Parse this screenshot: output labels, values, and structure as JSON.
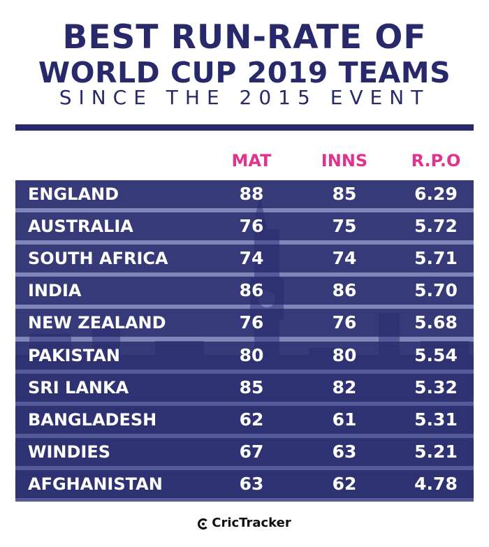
{
  "title": {
    "line1": "BEST RUN-RATE OF",
    "line2": "WORLD CUP 2019 TEAMS",
    "subtitle": "SINCE THE 2015 EVENT"
  },
  "colors": {
    "navy": "#27296a",
    "pink": "#e0338c",
    "row_text": "#ffffff"
  },
  "chart_data": {
    "type": "table",
    "columns": [
      "MAT",
      "INNS",
      "R.P.O"
    ],
    "rows": [
      {
        "team": "ENGLAND",
        "mat": "88",
        "inns": "85",
        "rpo": "6.29"
      },
      {
        "team": "AUSTRALIA",
        "mat": "76",
        "inns": "75",
        "rpo": "5.72"
      },
      {
        "team": "SOUTH AFRICA",
        "mat": "74",
        "inns": "74",
        "rpo": "5.71"
      },
      {
        "team": "INDIA",
        "mat": "86",
        "inns": "86",
        "rpo": "5.70"
      },
      {
        "team": "NEW ZEALAND",
        "mat": "76",
        "inns": "76",
        "rpo": "5.68"
      },
      {
        "team": "PAKISTAN",
        "mat": "80",
        "inns": "80",
        "rpo": "5.54"
      },
      {
        "team": "SRI LANKA",
        "mat": "85",
        "inns": "82",
        "rpo": "5.32"
      },
      {
        "team": "BANGLADESH",
        "mat": "62",
        "inns": "61",
        "rpo": "5.31"
      },
      {
        "team": "WINDIES",
        "mat": "67",
        "inns": "63",
        "rpo": "5.21"
      },
      {
        "team": "AFGHANISTAN",
        "mat": "63",
        "inns": "62",
        "rpo": "4.78"
      }
    ]
  },
  "brand": {
    "icon": "crictracker-logo-icon",
    "name": "CricTracker"
  }
}
